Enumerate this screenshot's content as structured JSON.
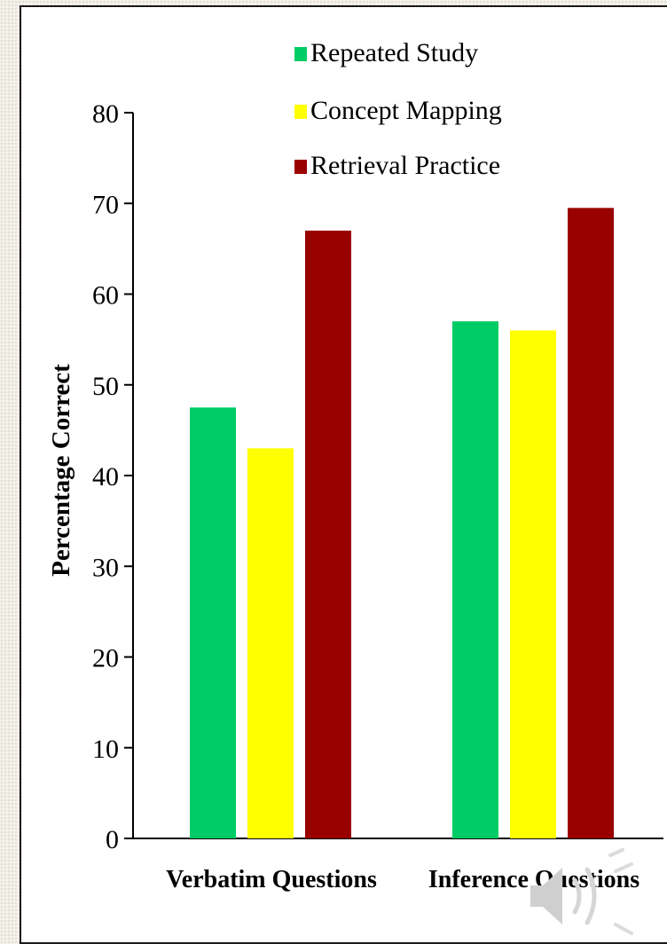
{
  "chart_data": {
    "type": "bar",
    "categories": [
      "Verbatim Questions",
      "Inference Questions"
    ],
    "series": [
      {
        "name": "Repeated Study",
        "color": "#00cc66",
        "values": [
          47.5,
          57
        ]
      },
      {
        "name": "Concept Mapping",
        "color": "#ffff00",
        "values": [
          43,
          56
        ]
      },
      {
        "name": "Retrieval Practice",
        "color": "#990000",
        "values": [
          67,
          69.5
        ]
      }
    ],
    "title": "",
    "xlabel": "",
    "ylabel": "Percentage Correct",
    "ylim": [
      0,
      80
    ],
    "yticks": [
      0,
      10,
      20,
      30,
      40,
      50,
      60,
      70,
      80
    ],
    "grid": false,
    "legend_position": "top-center"
  },
  "speaker_icon": "speaker-icon"
}
